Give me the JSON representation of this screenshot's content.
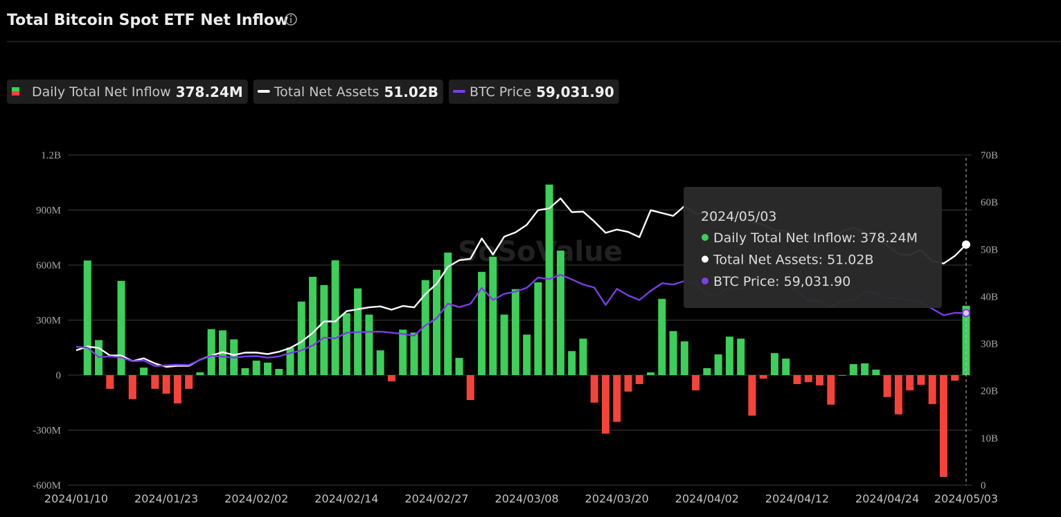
{
  "chart_data": {
    "type": "bar",
    "title": "Total Bitcoin Spot ETF Net Inflow",
    "watermark": "SoSoValue",
    "categories": [
      "2024/01/10",
      null,
      null,
      null,
      null,
      null,
      null,
      null,
      "2024/01/23",
      null,
      null,
      null,
      null,
      null,
      null,
      null,
      "2024/02/02",
      null,
      null,
      null,
      null,
      null,
      null,
      null,
      "2024/02/14",
      null,
      null,
      null,
      null,
      null,
      null,
      null,
      "2024/02/27",
      null,
      null,
      null,
      null,
      null,
      null,
      null,
      "2024/03/08",
      null,
      null,
      null,
      null,
      null,
      null,
      null,
      "2024/03/20",
      null,
      null,
      null,
      null,
      null,
      null,
      null,
      "2024/04/02",
      null,
      null,
      null,
      null,
      null,
      null,
      null,
      "2024/04/12",
      null,
      null,
      null,
      null,
      null,
      null,
      null,
      "2024/04/24",
      null,
      null,
      null,
      null,
      null,
      null,
      "2024/05/03"
    ],
    "series": [
      {
        "name": "Daily Total Net Inflow",
        "type": "bar",
        "color": "#3ccf5a",
        "negative_color": "#f5433a",
        "value_label": "378.24M",
        "values": [
          0,
          625,
          191,
          -75,
          514,
          -131,
          41,
          -75,
          -101,
          -154,
          -75,
          15,
          251,
          244,
          195,
          38,
          79,
          68,
          34,
          150,
          401,
          536,
          491,
          626,
          338,
          473,
          330,
          135,
          -34,
          248,
          232,
          518,
          574,
          668,
          94,
          -136,
          563,
          645,
          330,
          469,
          221,
          506,
          1039,
          679,
          131,
          199,
          -150,
          -319,
          -255,
          -90,
          -49,
          15,
          416,
          240,
          184,
          -83,
          38,
          113,
          210,
          199,
          -221,
          -19,
          120,
          90,
          -49,
          -38,
          -56,
          -161,
          -4,
          60,
          64,
          30,
          -120,
          -214,
          -83,
          -53,
          -158,
          -555,
          -30,
          378.24
        ]
      },
      {
        "name": "Total Net Assets",
        "type": "line",
        "axis": "y2",
        "color": "#ffffff",
        "value_label": "51.02B",
        "values": [
          28.6,
          29.4,
          29.1,
          27.5,
          27.5,
          26.3,
          26.9,
          25.8,
          25.1,
          25.3,
          25.3,
          26.6,
          27.5,
          28.2,
          27.6,
          28.1,
          28.1,
          27.8,
          28.3,
          29.1,
          30.4,
          32.3,
          34.7,
          34.7,
          36.9,
          37.3,
          37.7,
          37.9,
          37.2,
          38.0,
          37.7,
          40.5,
          42.7,
          46.3,
          47.7,
          48.0,
          52.3,
          48.9,
          52.7,
          53.6,
          55.2,
          58.3,
          58.7,
          60.8,
          57.9,
          58.0,
          55.9,
          53.5,
          54.2,
          53.7,
          52.6,
          58.3,
          57.7,
          57.1,
          59.2,
          57.5,
          57.8,
          56.0,
          56.8,
          57.0,
          55.8,
          55.2,
          54.0,
          53.9,
          53.0,
          52.3,
          53.5,
          52.0,
          53.8,
          54.6,
          53.5,
          52.4,
          50.9,
          49.0,
          48.8,
          49.9,
          47.5,
          47.0,
          48.6,
          51.02
        ]
      },
      {
        "name": "BTC Price",
        "type": "line",
        "axis": "hidden",
        "color": "#7b3fe4",
        "value_label": "59,031.90",
        "values": [
          46600,
          46300,
          42800,
          43100,
          42700,
          41300,
          41600,
          39500,
          39800,
          40000,
          39900,
          41800,
          43300,
          43000,
          42600,
          43100,
          43200,
          42600,
          43100,
          44300,
          45300,
          47100,
          50000,
          49700,
          51800,
          52000,
          52100,
          52200,
          51800,
          51300,
          50700,
          54500,
          57100,
          62500,
          61200,
          62400,
          68300,
          63800,
          66100,
          66900,
          68300,
          72100,
          71500,
          73100,
          71400,
          69500,
          68400,
          62000,
          67900,
          65500,
          63800,
          67200,
          70000,
          69500,
          70800,
          69700,
          65500,
          65900,
          68500,
          67800,
          71600,
          69100,
          70600,
          70000,
          67100,
          63400,
          63800,
          61300,
          63500,
          63800,
          66800,
          66400,
          64300,
          64500,
          63800,
          63100,
          60600,
          58200,
          59100,
          59031.9
        ]
      }
    ],
    "ylim": [
      -600,
      1200
    ],
    "yticks": [
      {
        "value": -600,
        "label": "-600M"
      },
      {
        "value": -300,
        "label": "-300M"
      },
      0,
      {
        "value": 300,
        "label": "300M"
      },
      {
        "value": 600,
        "label": "600M"
      },
      {
        "value": 900,
        "label": "900M"
      },
      {
        "value": 1200,
        "label": "1.2B"
      }
    ],
    "y2lim": [
      0,
      70
    ],
    "y2ticks": [
      0,
      {
        "value": 10,
        "label": "10B"
      },
      {
        "value": 20,
        "label": "20B"
      },
      {
        "value": 30,
        "label": "30B"
      },
      {
        "value": 40,
        "label": "40B"
      },
      {
        "value": 50,
        "label": "50B"
      },
      {
        "value": 60,
        "label": "60B"
      },
      {
        "value": 70,
        "label": "70B"
      }
    ],
    "grid": true,
    "tooltip": {
      "date": "2024/05/03",
      "items": [
        "Daily Total Net Inflow: 378.24M",
        "Total Net Assets: 51.02B",
        "BTC Price: 59,031.90"
      ]
    }
  }
}
